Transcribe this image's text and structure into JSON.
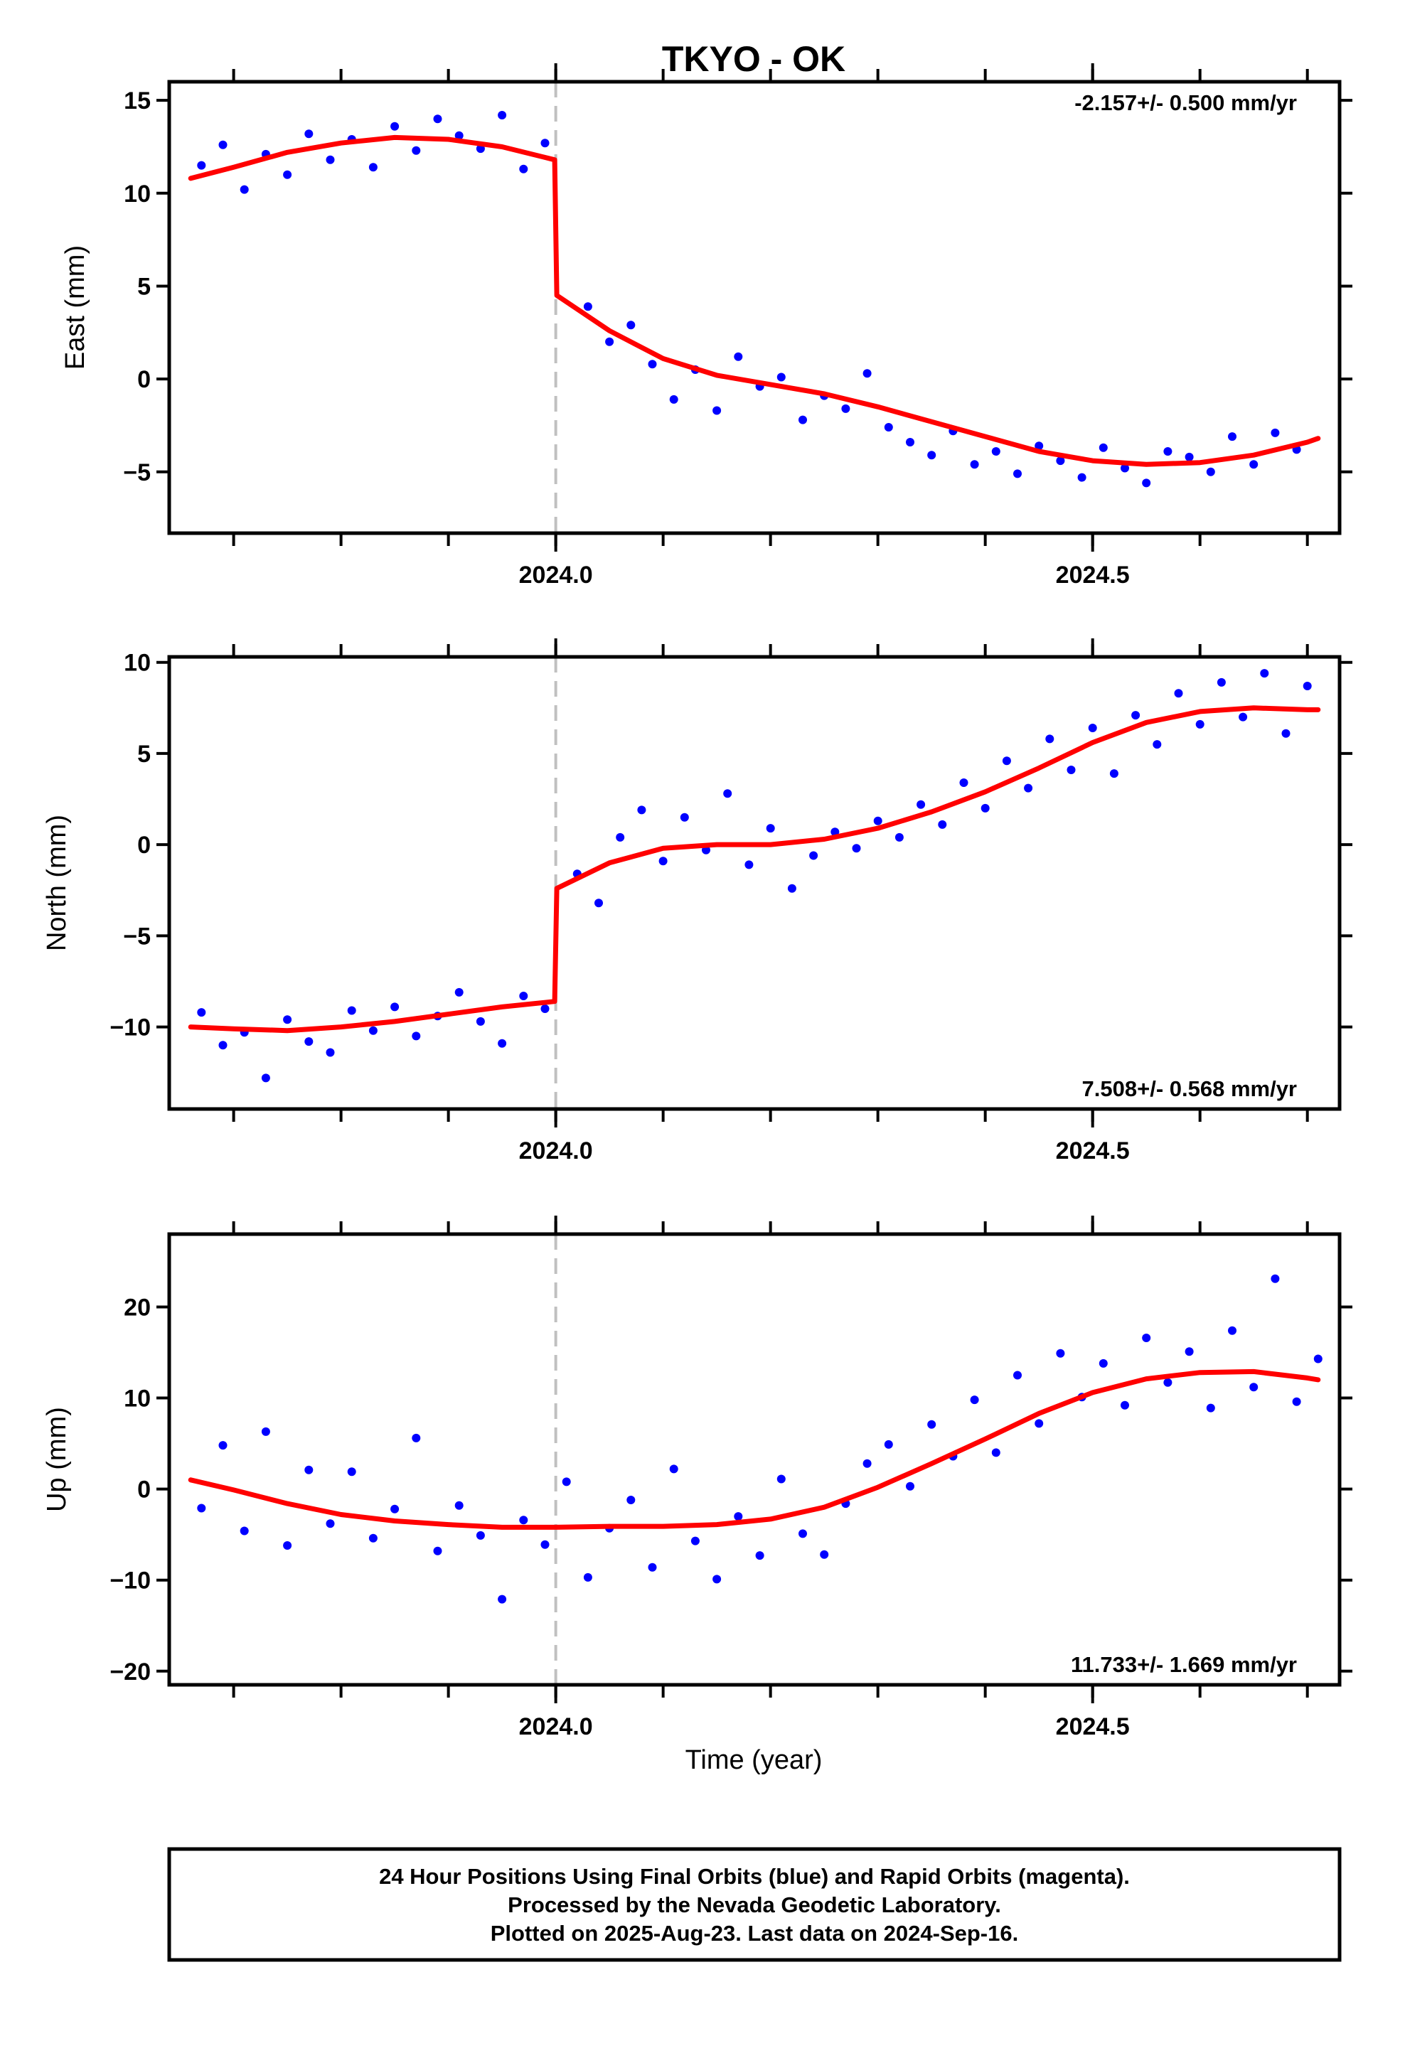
{
  "title": "TKYO - OK",
  "xlabel": "Time (year)",
  "footer": {
    "line1": "24 Hour Positions Using Final Orbits (blue) and Rapid Orbits (magenta).",
    "line2": "Processed by the Nevada Geodetic Laboratory.",
    "line3": "Plotted on 2025-Aug-23. Last data on 2024-Sep-16."
  },
  "colors": {
    "final_orbits": "#0000ff",
    "model": "#ff0000",
    "step_marker": "#c0c0c0",
    "frame": "#000000"
  },
  "chart_data": [
    {
      "type": "scatter",
      "ylabel": "East (mm)",
      "rate_label": "-2.157+/- 0.500 mm/yr",
      "rate_position": "top-right",
      "xlim": [
        2023.64,
        2024.73
      ],
      "ylim": [
        -8.3,
        16
      ],
      "xticks": [
        2024.0,
        2024.5
      ],
      "xtick_labels": [
        "2024.0",
        "2024.5"
      ],
      "yticks": [
        -5,
        0,
        5,
        10,
        15
      ],
      "ytick_labels": [
        "−5",
        "0",
        "5",
        "10",
        "15"
      ],
      "step_epoch": 2024.0,
      "data_range": [
        2023.66,
        2024.71
      ],
      "grid": false,
      "model": {
        "name": "",
        "x": [
          2023.66,
          2023.7,
          2023.75,
          2023.8,
          2023.85,
          2023.9,
          2023.95,
          2023.999,
          2024.001,
          2024.05,
          2024.1,
          2024.15,
          2024.2,
          2024.25,
          2024.3,
          2024.35,
          2024.4,
          2024.45,
          2024.5,
          2024.55,
          2024.6,
          2024.65,
          2024.7,
          2024.71
        ],
        "y": [
          10.8,
          11.4,
          12.2,
          12.7,
          13.0,
          12.9,
          12.5,
          11.8,
          4.5,
          2.6,
          1.1,
          0.2,
          -0.3,
          -0.8,
          -1.5,
          -2.3,
          -3.1,
          -3.9,
          -4.4,
          -4.6,
          -4.5,
          -4.1,
          -3.4,
          -3.2
        ]
      },
      "observations": {
        "name": "",
        "x": [
          2023.67,
          2023.69,
          2023.71,
          2023.73,
          2023.75,
          2023.77,
          2023.79,
          2023.81,
          2023.83,
          2023.85,
          2023.87,
          2023.89,
          2023.91,
          2023.93,
          2023.95,
          2023.97,
          2023.99,
          2024.03,
          2024.05,
          2024.07,
          2024.09,
          2024.11,
          2024.13,
          2024.15,
          2024.17,
          2024.19,
          2024.21,
          2024.23,
          2024.25,
          2024.27,
          2024.29,
          2024.31,
          2024.33,
          2024.35,
          2024.37,
          2024.39,
          2024.41,
          2024.43,
          2024.45,
          2024.47,
          2024.49,
          2024.51,
          2024.53,
          2024.55,
          2024.57,
          2024.59,
          2024.61,
          2024.63,
          2024.65,
          2024.67,
          2024.69
        ],
        "y": [
          11.5,
          12.6,
          10.2,
          12.1,
          11.0,
          13.2,
          11.8,
          12.9,
          11.4,
          13.6,
          12.3,
          14.0,
          13.1,
          12.4,
          14.2,
          11.3,
          12.7,
          3.9,
          2.0,
          2.9,
          0.8,
          -1.1,
          0.5,
          -1.7,
          1.2,
          -0.4,
          0.1,
          -2.2,
          -0.9,
          -1.6,
          0.3,
          -2.6,
          -3.4,
          -4.1,
          -2.8,
          -4.6,
          -3.9,
          -5.1,
          -3.6,
          -4.4,
          -5.3,
          -3.7,
          -4.8,
          -5.6,
          -3.9,
          -4.2,
          -5.0,
          -3.1,
          -4.6,
          -2.9,
          -3.8
        ]
      }
    },
    {
      "type": "scatter",
      "ylabel": "North (mm)",
      "rate_label": "7.508+/- 0.568 mm/yr",
      "rate_position": "bottom-right",
      "xlim": [
        2023.64,
        2024.73
      ],
      "ylim": [
        -14.5,
        10.3
      ],
      "xticks": [
        2024.0,
        2024.5
      ],
      "xtick_labels": [
        "2024.0",
        "2024.5"
      ],
      "yticks": [
        -10,
        -5,
        0,
        5,
        10
      ],
      "ytick_labels": [
        "−10",
        "−5",
        "0",
        "5",
        "10"
      ],
      "step_epoch": 2024.0,
      "data_range": [
        2023.66,
        2024.71
      ],
      "grid": false,
      "model": {
        "name": "",
        "x": [
          2023.66,
          2023.7,
          2023.75,
          2023.8,
          2023.85,
          2023.9,
          2023.95,
          2023.999,
          2024.001,
          2024.05,
          2024.1,
          2024.15,
          2024.2,
          2024.25,
          2024.3,
          2024.35,
          2024.4,
          2024.45,
          2024.5,
          2024.55,
          2024.6,
          2024.65,
          2024.7,
          2024.71
        ],
        "y": [
          -10.0,
          -10.1,
          -10.2,
          -10.0,
          -9.7,
          -9.3,
          -8.9,
          -8.6,
          -2.4,
          -1.0,
          -0.2,
          0.0,
          0.0,
          0.3,
          0.9,
          1.8,
          2.9,
          4.2,
          5.6,
          6.7,
          7.3,
          7.5,
          7.4,
          7.4
        ]
      },
      "observations": {
        "name": "",
        "x": [
          2023.67,
          2023.69,
          2023.71,
          2023.73,
          2023.75,
          2023.77,
          2023.79,
          2023.81,
          2023.83,
          2023.85,
          2023.87,
          2023.89,
          2023.91,
          2023.93,
          2023.95,
          2023.97,
          2023.99,
          2024.02,
          2024.04,
          2024.06,
          2024.08,
          2024.1,
          2024.12,
          2024.14,
          2024.16,
          2024.18,
          2024.2,
          2024.22,
          2024.24,
          2024.26,
          2024.28,
          2024.3,
          2024.32,
          2024.34,
          2024.36,
          2024.38,
          2024.4,
          2024.42,
          2024.44,
          2024.46,
          2024.48,
          2024.5,
          2024.52,
          2024.54,
          2024.56,
          2024.58,
          2024.6,
          2024.62,
          2024.64,
          2024.66,
          2024.68,
          2024.7
        ],
        "y": [
          -9.2,
          -11.0,
          -10.3,
          -12.8,
          -9.6,
          -10.8,
          -11.4,
          -9.1,
          -10.2,
          -8.9,
          -10.5,
          -9.4,
          -8.1,
          -9.7,
          -10.9,
          -8.3,
          -9.0,
          -1.6,
          -3.2,
          0.4,
          1.9,
          -0.9,
          1.5,
          -0.3,
          2.8,
          -1.1,
          0.9,
          -2.4,
          -0.6,
          0.7,
          -0.2,
          1.3,
          0.4,
          2.2,
          1.1,
          3.4,
          2.0,
          4.6,
          3.1,
          5.8,
          4.1,
          6.4,
          3.9,
          7.1,
          5.5,
          8.3,
          6.6,
          8.9,
          7.0,
          9.4,
          6.1,
          8.7
        ]
      }
    },
    {
      "type": "scatter",
      "ylabel": "Up (mm)",
      "rate_label": "11.733+/- 1.669 mm/yr",
      "rate_position": "bottom-right",
      "xlim": [
        2023.64,
        2024.73
      ],
      "ylim": [
        -21.5,
        28
      ],
      "xticks": [
        2024.0,
        2024.5
      ],
      "xtick_labels": [
        "2024.0",
        "2024.5"
      ],
      "yticks": [
        -20,
        -10,
        0,
        10,
        20
      ],
      "ytick_labels": [
        "−20",
        "−10",
        "0",
        "10",
        "20"
      ],
      "step_epoch": 2024.0,
      "data_range": [
        2023.66,
        2024.71
      ],
      "grid": false,
      "model": {
        "name": "",
        "x": [
          2023.66,
          2023.7,
          2023.75,
          2023.8,
          2023.85,
          2023.9,
          2023.95,
          2024.0,
          2024.05,
          2024.1,
          2024.15,
          2024.2,
          2024.25,
          2024.3,
          2024.35,
          2024.4,
          2024.45,
          2024.5,
          2024.55,
          2024.6,
          2024.65,
          2024.7,
          2024.71
        ],
        "y": [
          1.0,
          -0.1,
          -1.6,
          -2.8,
          -3.5,
          -3.9,
          -4.2,
          -4.2,
          -4.1,
          -4.1,
          -3.9,
          -3.3,
          -2.0,
          0.2,
          2.8,
          5.5,
          8.3,
          10.6,
          12.1,
          12.8,
          12.9,
          12.2,
          12.0
        ]
      },
      "observations": {
        "name": "",
        "x": [
          2023.67,
          2023.69,
          2023.71,
          2023.73,
          2023.75,
          2023.77,
          2023.79,
          2023.81,
          2023.83,
          2023.85,
          2023.87,
          2023.89,
          2023.91,
          2023.93,
          2023.95,
          2023.97,
          2023.99,
          2024.01,
          2024.03,
          2024.05,
          2024.07,
          2024.09,
          2024.11,
          2024.13,
          2024.15,
          2024.17,
          2024.19,
          2024.21,
          2024.23,
          2024.25,
          2024.27,
          2024.29,
          2024.31,
          2024.33,
          2024.35,
          2024.37,
          2024.39,
          2024.41,
          2024.43,
          2024.45,
          2024.47,
          2024.49,
          2024.51,
          2024.53,
          2024.55,
          2024.57,
          2024.59,
          2024.61,
          2024.63,
          2024.65,
          2024.67,
          2024.69,
          2024.71
        ],
        "y": [
          -2.1,
          4.8,
          -4.6,
          6.3,
          -6.2,
          2.1,
          -3.8,
          1.9,
          -5.4,
          -2.2,
          5.6,
          -6.8,
          -1.8,
          -5.1,
          -12.1,
          -3.4,
          -6.1,
          0.8,
          -9.7,
          -4.3,
          -1.2,
          -8.6,
          2.2,
          -5.7,
          -9.9,
          -3.0,
          -7.3,
          1.1,
          -4.9,
          -7.2,
          -1.6,
          2.8,
          4.9,
          0.3,
          7.1,
          3.6,
          9.8,
          4.0,
          12.5,
          7.2,
          14.9,
          10.1,
          13.8,
          9.2,
          16.6,
          11.7,
          15.1,
          8.9,
          17.4,
          11.2,
          23.1,
          9.6,
          14.3
        ]
      }
    }
  ]
}
